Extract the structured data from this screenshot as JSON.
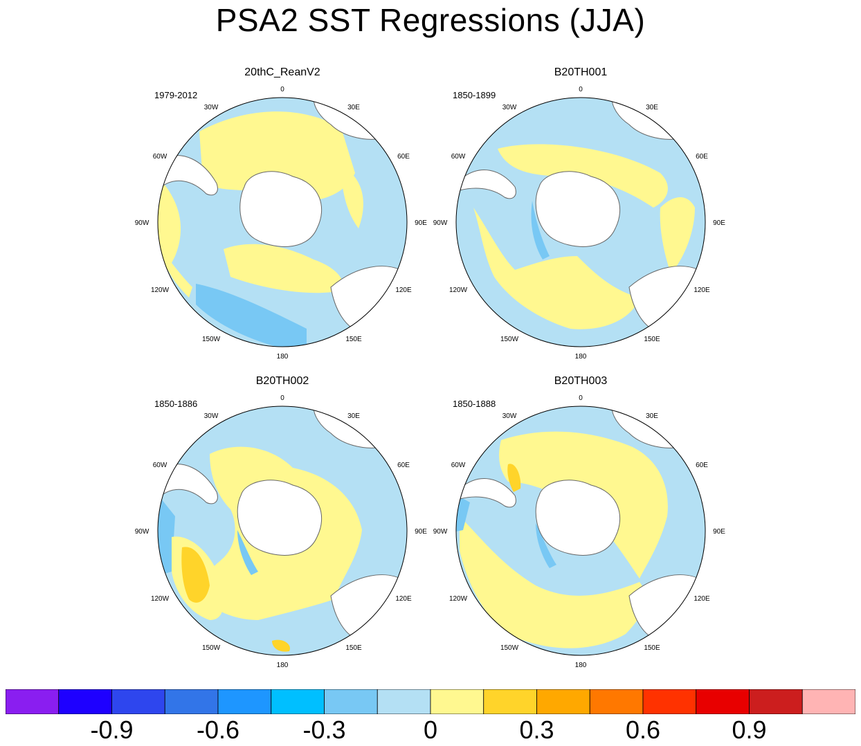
{
  "title": "PSA2 SST Regressions (JJA)",
  "colors": {
    "land": "#ffffff",
    "coast": "#666666",
    "ocean_default": "#b4e0f4"
  },
  "chart_data": {
    "type": "heatmap",
    "projection": "south polar stereographic",
    "variable": "SST regression onto PSA2",
    "season": "JJA",
    "longitude_labels": [
      "0",
      "30E",
      "60E",
      "90E",
      "120E",
      "150E",
      "180",
      "150W",
      "120W",
      "90W",
      "60W",
      "30W"
    ],
    "panels": [
      {
        "name": "20thC_ReanV2",
        "period": "1979-2012",
        "dominant_range": [
          -0.3,
          0.15
        ],
        "features": [
          {
            "sector": "Atlantic 30W-60E",
            "sign": "positive",
            "range": [
              0,
              0.15
            ]
          },
          {
            "sector": "Indian 60E-110E",
            "sign": "mixed",
            "range": [
              -0.15,
              0.15
            ]
          },
          {
            "sector": "Pacific 120W-160W",
            "sign": "negative",
            "range": [
              -0.3,
              -0.15
            ]
          },
          {
            "sector": "SE Pacific 70W-110W",
            "sign": "positive",
            "range": [
              0,
              0.15
            ]
          }
        ]
      },
      {
        "name": "B20TH001",
        "period": "1850-1899",
        "dominant_range": [
          -0.3,
          0.3
        ],
        "features": [
          {
            "sector": "Circumpolar 50S ring",
            "sign": "positive",
            "range": [
              0,
              0.15
            ]
          },
          {
            "sector": "South Pacific 120W-180",
            "sign": "positive",
            "range": [
              0,
              0.15
            ]
          },
          {
            "sector": "Amundsen Sea 90W",
            "sign": "negative",
            "range": [
              -0.3,
              -0.15
            ]
          },
          {
            "sector": "Indian 90E",
            "sign": "negative",
            "range": [
              -0.15,
              0
            ]
          }
        ]
      },
      {
        "name": "B20TH002",
        "period": "1850-1886",
        "dominant_range": [
          -0.3,
          0.3
        ],
        "features": [
          {
            "sector": "Pacific 110W-140W",
            "sign": "positive",
            "range": [
              0.15,
              0.3
            ]
          },
          {
            "sector": "SE Pacific 80W-100W",
            "sign": "negative",
            "range": [
              -0.3,
              -0.15
            ]
          },
          {
            "sector": "Circumpolar 55S ring",
            "sign": "positive",
            "range": [
              0,
              0.15
            ]
          },
          {
            "sector": "Atlantic 20W",
            "sign": "negative",
            "range": [
              -0.15,
              0
            ]
          }
        ]
      },
      {
        "name": "B20TH003",
        "period": "1850-1888",
        "dominant_range": [
          -0.3,
          0.3
        ],
        "features": [
          {
            "sector": "South Atlantic 45W",
            "sign": "positive",
            "range": [
              0.15,
              0.3
            ]
          },
          {
            "sector": "Pacific 100W-180",
            "sign": "positive",
            "range": [
              0,
              0.15
            ]
          },
          {
            "sector": "SE Pacific 90W",
            "sign": "negative",
            "range": [
              -0.3,
              -0.15
            ]
          },
          {
            "sector": "Indian 60E-90E",
            "sign": "positive",
            "range": [
              0,
              0.15
            ]
          }
        ]
      }
    ],
    "colorbar": {
      "levels": [
        -1.05,
        -0.9,
        -0.75,
        -0.6,
        -0.45,
        -0.3,
        -0.15,
        0,
        0.15,
        0.3,
        0.45,
        0.6,
        0.75,
        0.9,
        1.05
      ],
      "colors": [
        "#8a1ef0",
        "#1e00ff",
        "#2e46ee",
        "#3275e8",
        "#1e96ff",
        "#00bfff",
        "#78c8f4",
        "#b4e0f4",
        "#fff890",
        "#ffd42a",
        "#ffa800",
        "#ff7800",
        "#ff3200",
        "#e80000",
        "#cc1e1e",
        "#ffb4b4"
      ],
      "tick_labels": [
        "-0.9",
        "-0.6",
        "-0.3",
        "0",
        "0.3",
        "0.6",
        "0.9"
      ],
      "tick_values": [
        -0.9,
        -0.6,
        -0.3,
        0,
        0.3,
        0.6,
        0.9
      ]
    }
  }
}
